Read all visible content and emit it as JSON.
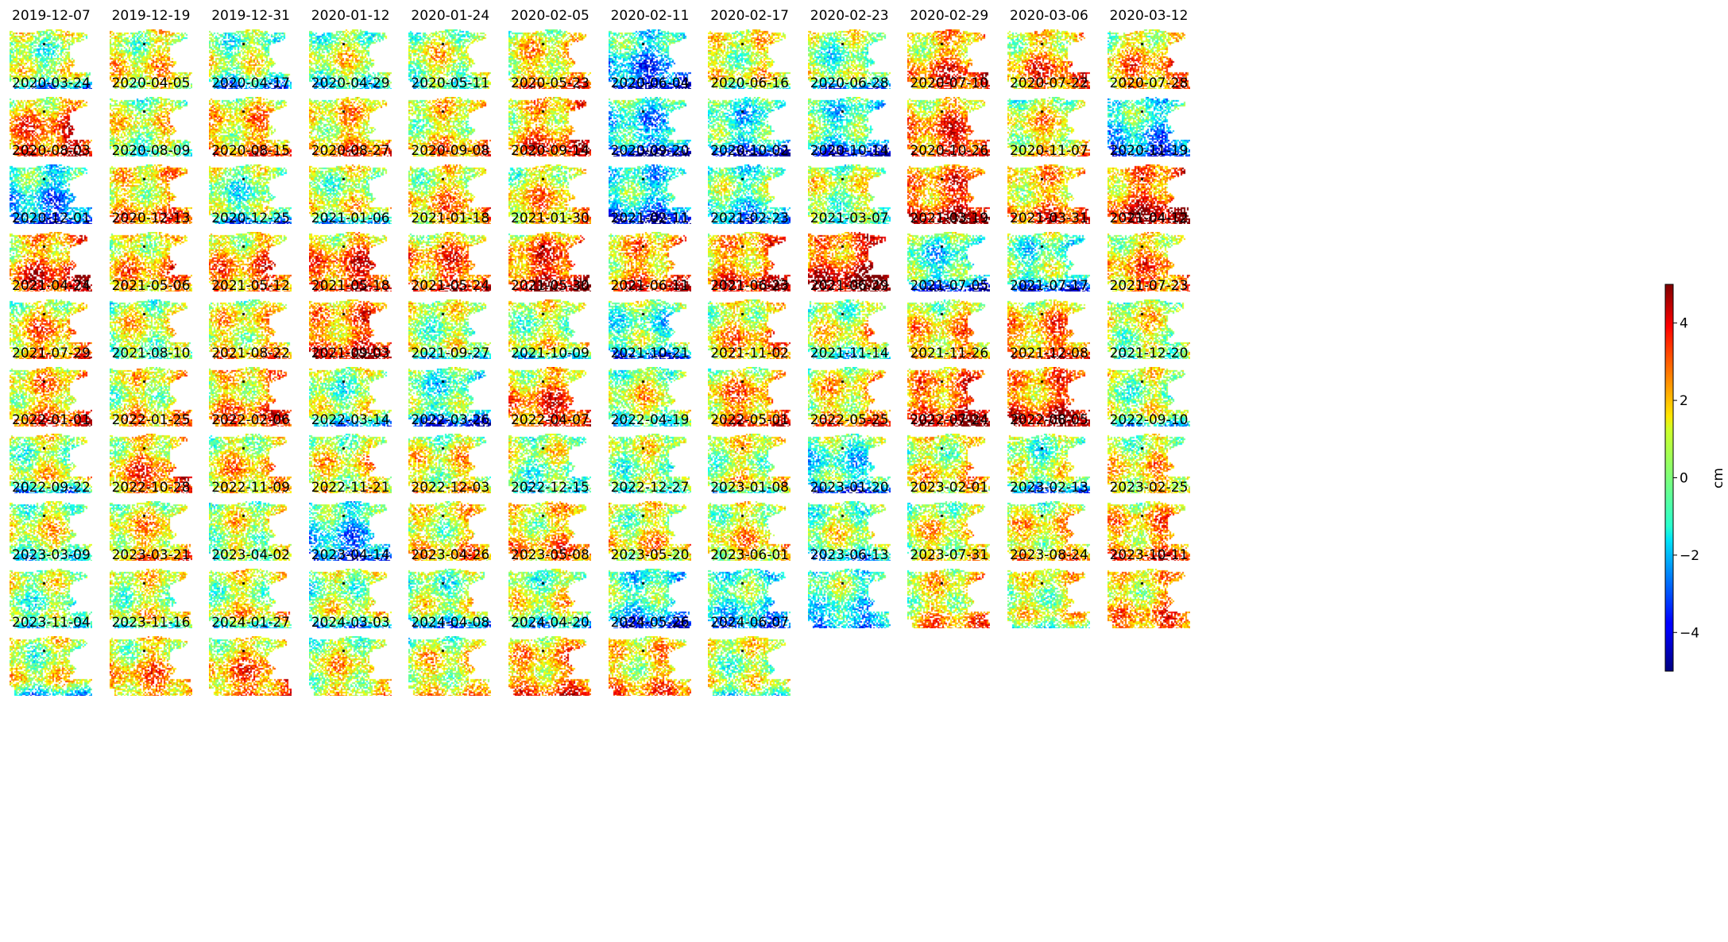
{
  "figure": {
    "panel_dates": [
      "2019-12-07",
      "2019-12-19",
      "2019-12-31",
      "2020-01-12",
      "2020-01-24",
      "2020-02-05",
      "2020-02-11",
      "2020-02-17",
      "2020-02-23",
      "2020-02-29",
      "2020-03-06",
      "2020-03-12",
      "2020-03-24",
      "2020-04-05",
      "2020-04-17",
      "2020-04-29",
      "2020-05-11",
      "2020-05-23",
      "2020-06-04",
      "2020-06-16",
      "2020-06-28",
      "2020-07-10",
      "2020-07-22",
      "2020-07-28",
      "2020-08-03",
      "2020-08-09",
      "2020-08-15",
      "2020-08-27",
      "2020-09-08",
      "2020-09-14",
      "2020-09-20",
      "2020-10-02",
      "2020-10-14",
      "2020-10-26",
      "2020-11-07",
      "2020-11-19",
      "2020-12-01",
      "2020-12-13",
      "2020-12-25",
      "2021-01-06",
      "2021-01-18",
      "2021-01-30",
      "2021-02-11",
      "2021-02-23",
      "2021-03-07",
      "2021-03-19",
      "2021-03-31",
      "2021-04-12",
      "2021-04-24",
      "2021-05-06",
      "2021-05-12",
      "2021-05-18",
      "2021-05-24",
      "2021-05-30",
      "2021-06-11",
      "2021-06-23",
      "2021-06-29",
      "2021-07-05",
      "2021-07-17",
      "2021-07-23",
      "2021-07-29",
      "2021-08-10",
      "2021-08-22",
      "2021-09-03",
      "2021-09-27",
      "2021-10-09",
      "2021-10-21",
      "2021-11-02",
      "2021-11-14",
      "2021-11-26",
      "2021-12-08",
      "2021-12-20",
      "2022-01-01",
      "2022-01-25",
      "2022-02-06",
      "2022-03-14",
      "2022-03-26",
      "2022-04-07",
      "2022-04-19",
      "2022-05-01",
      "2022-05-25",
      "2022-07-24",
      "2022-08-05",
      "2022-09-10",
      "2022-09-22",
      "2022-10-28",
      "2022-11-09",
      "2022-11-21",
      "2022-12-03",
      "2022-12-15",
      "2022-12-27",
      "2023-01-08",
      "2023-01-20",
      "2023-02-01",
      "2023-02-13",
      "2023-02-25",
      "2023-03-09",
      "2023-03-21",
      "2023-04-02",
      "2023-04-14",
      "2023-04-26",
      "2023-05-08",
      "2023-05-20",
      "2023-06-01",
      "2023-06-13",
      "2023-07-31",
      "2023-08-24",
      "2023-10-11",
      "2023-11-04",
      "2023-11-16",
      "2024-01-27",
      "2024-03-03",
      "2024-04-08",
      "2024-04-20",
      "2024-05-26",
      "2024-06-07"
    ],
    "mean_displacement_cm": [
      0.3,
      1.0,
      0.2,
      0.6,
      0.8,
      1.4,
      -1.8,
      0.9,
      0.0,
      2.2,
      2.0,
      1.8,
      2.5,
      0.8,
      1.6,
      1.5,
      1.2,
      2.0,
      -1.5,
      -1.0,
      -0.8,
      2.6,
      1.2,
      -1.2,
      -1.5,
      1.4,
      -0.2,
      0.6,
      1.5,
      1.5,
      -1.2,
      -0.5,
      0.5,
      2.8,
      1.8,
      2.8,
      2.5,
      1.6,
      2.0,
      2.6,
      2.4,
      3.0,
      2.0,
      2.2,
      3.2,
      -0.8,
      -0.4,
      2.0,
      1.8,
      0.8,
      1.2,
      2.4,
      0.4,
      0.6,
      -0.4,
      1.5,
      0.8,
      1.5,
      2.0,
      0.8,
      1.8,
      1.0,
      1.8,
      0.2,
      -0.6,
      2.4,
      0.8,
      2.0,
      1.4,
      2.6,
      2.6,
      0.4,
      0.6,
      2.0,
      1.4,
      1.0,
      1.0,
      0.2,
      0.4,
      0.8,
      -0.8,
      1.0,
      0.2,
      1.2,
      0.8,
      1.4,
      0.8,
      -1.4,
      1.0,
      1.4,
      1.0,
      1.2,
      0.4,
      1.0,
      1.2,
      1.8,
      0.2,
      0.8,
      0.8,
      0.4,
      0.2,
      0.6,
      -0.8,
      -0.6,
      -0.6,
      1.2,
      0.8,
      1.6,
      0.6,
      1.6,
      2.0,
      1.0,
      1.0,
      1.8,
      1.4,
      0.6
    ]
  },
  "colorbar": {
    "label": "cm",
    "min": -5,
    "max": 5,
    "ticks": [
      -4,
      -2,
      0,
      2,
      4
    ],
    "tick_labels": [
      "−4",
      "−2",
      "0",
      "2",
      "4"
    ],
    "colormap": "jet"
  }
}
